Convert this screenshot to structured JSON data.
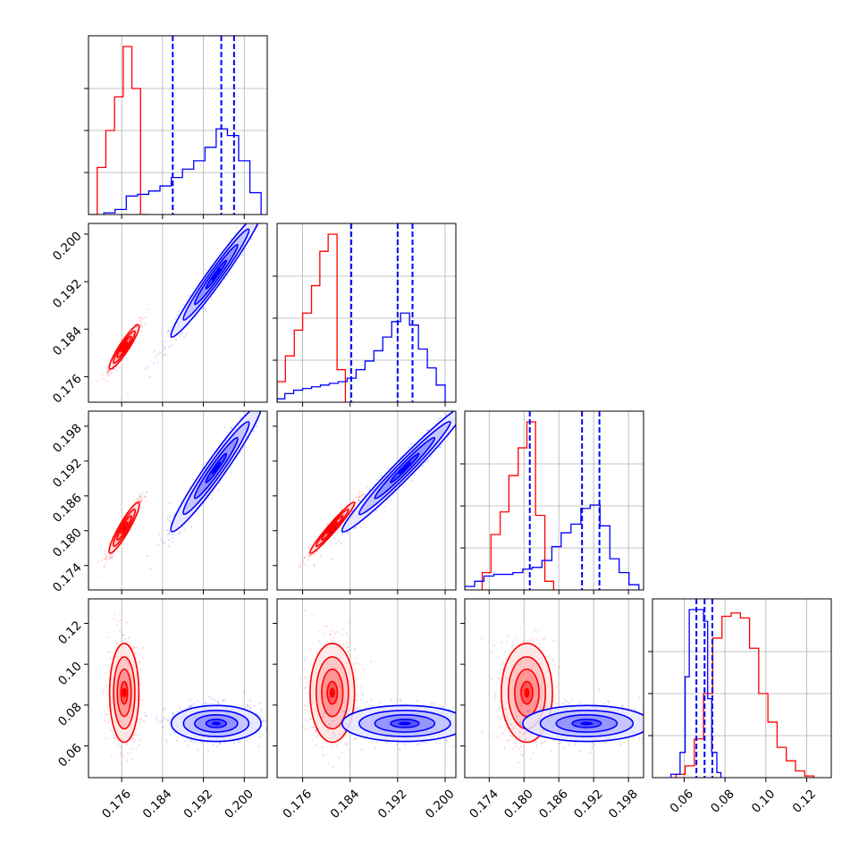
{
  "chart_data": {
    "type": "corner",
    "title": "",
    "grid": true,
    "n_params": 4,
    "params": [
      {
        "range": [
          0.1695,
          0.2045
        ],
        "ticks": [
          0.176,
          0.184,
          0.192,
          0.2
        ],
        "tick_labels": [
          "0.176",
          "0.184",
          "0.192",
          "0.200"
        ]
      },
      {
        "range": [
          0.1717,
          0.2018
        ],
        "ticks": [
          0.176,
          0.184,
          0.192,
          0.2
        ],
        "tick_labels": [
          "0.176",
          "0.184",
          "0.192",
          "0.200"
        ]
      },
      {
        "range": [
          0.1698,
          0.2006
        ],
        "ticks": [
          0.174,
          0.18,
          0.186,
          0.192,
          0.198
        ],
        "tick_labels": [
          "0.174",
          "0.180",
          "0.186",
          "0.192",
          "0.198"
        ]
      },
      {
        "range": [
          0.0445,
          0.132
        ],
        "ticks": [
          0.06,
          0.08,
          0.1,
          0.12
        ],
        "tick_labels": [
          "0.06",
          "0.08",
          "0.10",
          "0.12"
        ]
      }
    ],
    "series": [
      {
        "color": "#ff0000",
        "mean": [
          0.1765,
          0.181,
          0.1805,
          0.086
        ],
        "std": [
          0.0013,
          0.0017,
          0.002,
          0.011
        ],
        "corr": [
          [
            1.0,
            0.95,
            0.95,
            0.0
          ],
          [
            0.95,
            1.0,
            0.98,
            0.0
          ],
          [
            0.95,
            0.98,
            1.0,
            0.0
          ],
          [
            0.0,
            0.0,
            0.0,
            1.0
          ]
        ],
        "hist": [
          {
            "edges": [
              0.1695,
              0.1712,
              0.1729,
              0.1746,
              0.1763,
              0.178,
              0.1797,
              0.1814
            ],
            "counts": [
              0,
              0.28,
              0.5,
              0.7,
              1.0,
              0.75,
              0.0
            ]
          },
          {
            "edges": [
              0.1717,
              0.1731,
              0.1746,
              0.176,
              0.1775,
              0.1789,
              0.1803,
              0.1818,
              0.1832
            ],
            "counts": [
              0.12,
              0.27,
              0.42,
              0.52,
              0.68,
              0.88,
              0.98,
              0.19
            ]
          },
          {
            "edges": [
              0.1728,
              0.1743,
              0.1759,
              0.1774,
              0.179,
              0.1805,
              0.182,
              0.1836,
              0.1851
            ],
            "counts": [
              0.1,
              0.32,
              0.45,
              0.66,
              0.82,
              0.97,
              0.43,
              0.05
            ]
          },
          {
            "edges": [
              0.056,
              0.0605,
              0.065,
              0.0695,
              0.074,
              0.0785,
              0.083,
              0.0875,
              0.092,
              0.0965,
              0.101,
              0.1055,
              0.11,
              0.1145,
              0.119,
              0.1235
            ],
            "counts": [
              0.02,
              0.07,
              0.23,
              0.5,
              0.83,
              0.96,
              0.98,
              0.95,
              0.77,
              0.5,
              0.33,
              0.18,
              0.1,
              0.04,
              0.01
            ]
          }
        ]
      },
      {
        "color": "#0000ff",
        "mean": [
          0.1945,
          0.1932,
          0.1908,
          0.071
        ],
        "std": [
          0.004,
          0.0048,
          0.005,
          0.004
        ],
        "corr": [
          [
            1.0,
            0.98,
            0.97,
            0.0
          ],
          [
            0.98,
            1.0,
            0.98,
            0.0
          ],
          [
            0.97,
            0.98,
            1.0,
            0.0
          ],
          [
            0.0,
            0.0,
            0.0,
            1.0
          ]
        ],
        "quantiles": [
          [
            0.186,
            0.1955,
            0.198
          ],
          [
            0.1842,
            0.192,
            0.1945
          ],
          [
            0.181,
            0.19,
            0.193
          ],
          [
            0.066,
            0.07,
            0.0738
          ]
        ],
        "hist": [
          {
            "edges": [
              0.1725,
              0.1747,
              0.1769,
              0.1791,
              0.1813,
              0.1835,
              0.1857,
              0.1879,
              0.1901,
              0.1923,
              0.1945,
              0.1967,
              0.1989,
              0.2011,
              0.2033
            ],
            "counts": [
              0.01,
              0.03,
              0.11,
              0.12,
              0.14,
              0.17,
              0.22,
              0.27,
              0.32,
              0.4,
              0.51,
              0.47,
              0.32,
              0.13
            ]
          },
          {
            "edges": [
              0.1717,
              0.173,
              0.1745,
              0.176,
              0.1775,
              0.179,
              0.1805,
              0.182,
              0.1835,
              0.185,
              0.1865,
              0.188,
              0.1895,
              0.191,
              0.1925,
              0.194,
              0.1955,
              0.197,
              0.1985,
              0.2
            ],
            "counts": [
              0.02,
              0.05,
              0.07,
              0.08,
              0.09,
              0.1,
              0.11,
              0.12,
              0.14,
              0.19,
              0.24,
              0.3,
              0.38,
              0.47,
              0.52,
              0.45,
              0.31,
              0.2,
              0.1
            ]
          },
          {
            "edges": [
              0.1698,
              0.1715,
              0.1731,
              0.1748,
              0.1765,
              0.1781,
              0.1798,
              0.1814,
              0.1831,
              0.1848,
              0.1864,
              0.1881,
              0.1898,
              0.1914,
              0.1931,
              0.1948,
              0.1964,
              0.1981,
              0.1998
            ],
            "counts": [
              0.02,
              0.05,
              0.08,
              0.09,
              0.09,
              0.1,
              0.12,
              0.13,
              0.17,
              0.25,
              0.33,
              0.38,
              0.47,
              0.49,
              0.37,
              0.18,
              0.1,
              0.03
            ]
          },
          {
            "edges": [
              0.0535,
              0.058,
              0.0605,
              0.0625,
              0.065,
              0.0675,
              0.0695,
              0.0715,
              0.0735,
              0.076,
              0.078
            ],
            "counts": [
              0.02,
              0.15,
              0.6,
              1.0,
              1.0,
              1.0,
              0.93,
              0.47,
              0.15,
              0.03
            ]
          }
        ]
      }
    ]
  }
}
